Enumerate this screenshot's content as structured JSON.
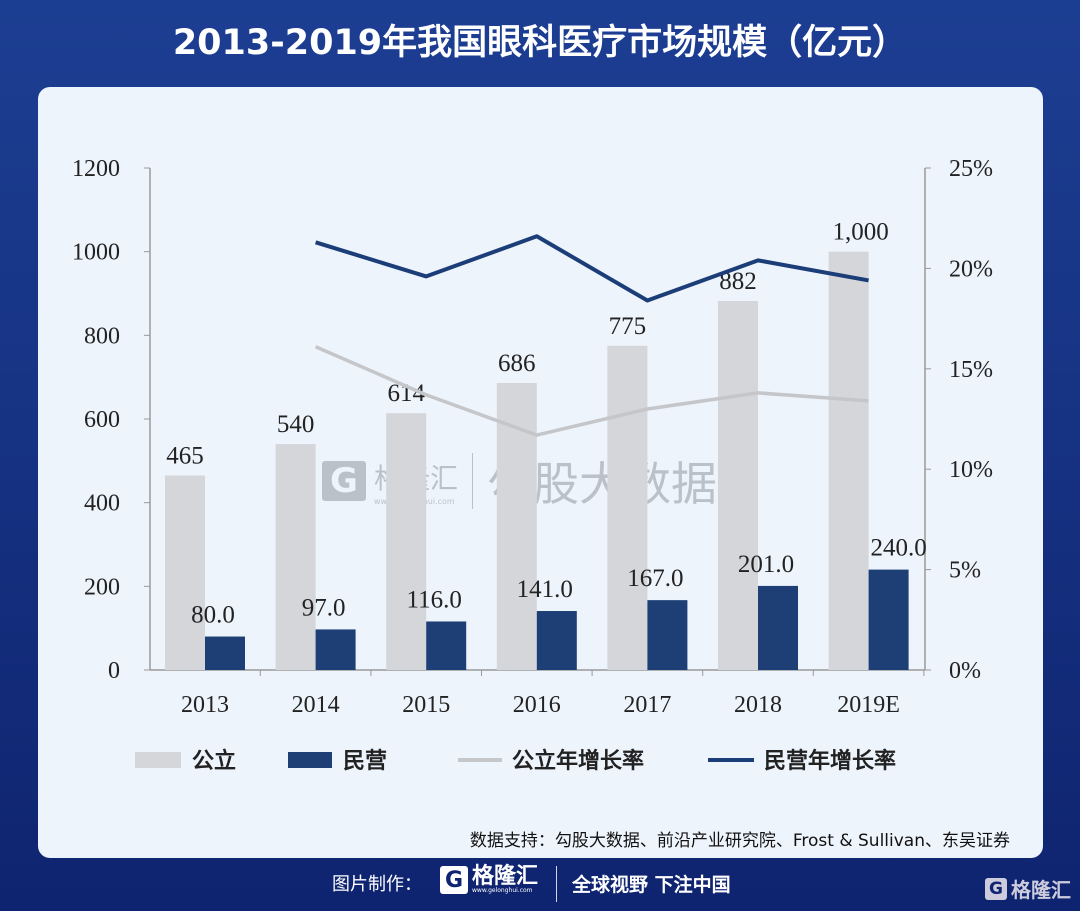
{
  "title": "2013-2019年我国眼科医疗市场规模（亿元）",
  "chart_data": {
    "type": "bar+line",
    "categories": [
      "2013",
      "2014",
      "2015",
      "2016",
      "2017",
      "2018",
      "2019E"
    ],
    "series": [
      {
        "name": "公立",
        "type": "bar",
        "axis": "left",
        "color": "#d4d6da",
        "values": [
          465,
          540,
          614,
          686,
          775,
          882,
          1000
        ],
        "labels": [
          "465",
          "540",
          "614",
          "686",
          "775",
          "882",
          "1,000"
        ]
      },
      {
        "name": "民营",
        "type": "bar",
        "axis": "left",
        "color": "#1d3f75",
        "values": [
          80,
          97,
          116,
          141,
          167,
          201,
          240
        ],
        "labels": [
          "80.0",
          "97.0",
          "116.0",
          "141.0",
          "167.0",
          "201.0",
          "240.0"
        ]
      },
      {
        "name": "公立年增长率",
        "type": "line",
        "axis": "right",
        "color": "#c4c6c9",
        "values": [
          null,
          16.1,
          13.7,
          11.7,
          13.0,
          13.8,
          13.4
        ]
      },
      {
        "name": "民营年增长率",
        "type": "line",
        "axis": "right",
        "color": "#1b3d78",
        "values": [
          null,
          21.3,
          19.6,
          21.6,
          18.4,
          20.4,
          19.4
        ]
      }
    ],
    "left_axis": {
      "range": [
        0,
        1200
      ],
      "ticks": [
        "0",
        "200",
        "400",
        "600",
        "800",
        "1000",
        "1200"
      ]
    },
    "right_axis": {
      "range": [
        0,
        25
      ],
      "ticks": [
        "0%",
        "5%",
        "10%",
        "15%",
        "20%",
        "25%"
      ]
    },
    "grid": false,
    "legend_position": "bottom"
  },
  "watermark": {
    "brand": "格隆汇",
    "url": "www.gelonghui.com",
    "partner": "勾股大数据"
  },
  "source": "数据支持：勾股大数据、前沿产业研究院、Frost & Sullivan、东吴证券",
  "footer": {
    "made_by": "图片制作：",
    "brand": "格隆汇",
    "url": "www.gelonghui.com",
    "slogan": "全球视野 下注中国",
    "corner_brand": "格隆汇",
    "logo_letter": "G"
  }
}
